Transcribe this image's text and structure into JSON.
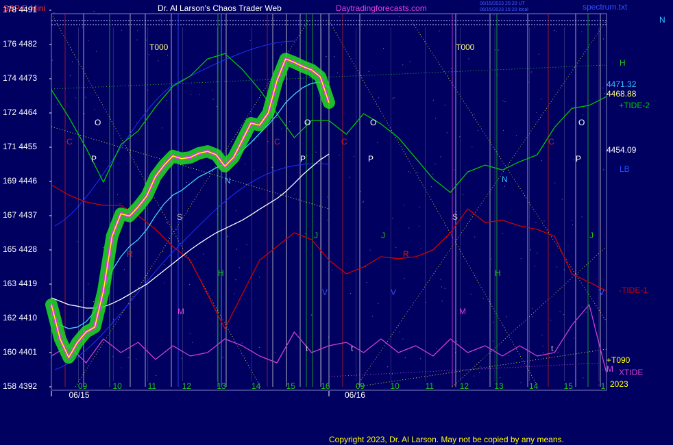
{
  "chart_data": {
    "type": "line",
    "title": "Dr. Al Larson's Chaos Trader Web",
    "instrument": "S&P E-Mini",
    "site": "Daytradingforecasts.com",
    "timestamps": [
      "06/15/2023 20:20 UT",
      "06/15/2023 15:20 local"
    ],
    "file_label": "spectrum.txt",
    "copyright": "Copyright 2023, Dr. Al Larson. May not be copied by any means.",
    "ylim": [
      4392,
      4491
    ],
    "yticks": [
      {
        "value": 4392,
        "label": "158 4392"
      },
      {
        "value": 4401,
        "label": "160 4401"
      },
      {
        "value": 4410,
        "label": "162 4410"
      },
      {
        "value": 4419,
        "label": "163 4419"
      },
      {
        "value": 4428,
        "label": "165 4428"
      },
      {
        "value": 4437,
        "label": "167 4437"
      },
      {
        "value": 4446,
        "label": "169 4446"
      },
      {
        "value": 4455,
        "label": "171 4455"
      },
      {
        "value": 4464,
        "label": "172 4464"
      },
      {
        "value": 4473,
        "label": "174 4473"
      },
      {
        "value": 4482,
        "label": "176 4482"
      },
      {
        "value": 4491,
        "label": "178 4491"
      }
    ],
    "xlim": [
      -0.9,
      15.1
    ],
    "xticks": [
      {
        "value": 0,
        "label": "09"
      },
      {
        "value": 1,
        "label": "10"
      },
      {
        "value": 2,
        "label": "11"
      },
      {
        "value": 3,
        "label": "12"
      },
      {
        "value": 4,
        "label": "13"
      },
      {
        "value": 5,
        "label": "14"
      },
      {
        "value": 6,
        "label": "15"
      },
      {
        "value": 7,
        "label": "16"
      },
      {
        "value": 8,
        "label": "09"
      },
      {
        "value": 9,
        "label": "10"
      },
      {
        "value": 10,
        "label": "11"
      },
      {
        "value": 11,
        "label": "12"
      },
      {
        "value": 12,
        "label": "13"
      },
      {
        "value": 13,
        "label": "14"
      },
      {
        "value": 14,
        "label": "15"
      },
      {
        "value": 15,
        "label": "1"
      }
    ],
    "day_starts": [
      -0.9,
      7.1
    ],
    "date_labels": [
      {
        "value": -0.1,
        "label": "06/15"
      },
      {
        "value": 7.85,
        "label": "06/16"
      }
    ],
    "series": [
      {
        "color": "#ffff00",
        "glow": "#22dd22",
        "x": [
          -0.9,
          -0.65,
          -0.4,
          -0.15,
          0.1,
          0.35,
          0.6,
          0.85,
          1.1,
          1.35,
          1.6,
          1.85,
          2.1,
          2.35,
          2.6,
          2.85,
          3.1,
          3.35,
          3.6,
          3.85,
          4.1,
          4.35,
          4.6,
          4.85,
          5.1,
          5.35,
          5.6,
          5.85,
          6.1,
          6.35,
          6.6,
          6.85,
          7.1
        ],
        "values": [
          4413.6,
          4404.6,
          4399.7,
          4403.7,
          4406.4,
          4407.7,
          4417.2,
          4431.6,
          4437.5,
          4436.9,
          4439.3,
          4442.2,
          4447.3,
          4450.3,
          4452.7,
          4452.0,
          4452.3,
          4453.4,
          4453.9,
          4453.0,
          4450.0,
          4452.3,
          4456.8,
          4461.3,
          4460.8,
          4464.0,
          4472.5,
          4478.2,
          4477.3,
          4476.2,
          4475.3,
          4473.5,
          4466.7
        ]
      },
      {
        "color": "#40d8ff",
        "x": [
          -0.9,
          -0.65,
          -0.4,
          -0.15,
          0.1,
          0.35,
          0.6,
          0.85,
          1.1,
          1.35,
          1.6,
          1.85,
          2.1,
          2.35,
          2.6,
          2.85,
          3.1,
          3.35,
          3.6,
          3.85,
          4.1,
          4.35,
          4.6,
          4.85,
          5.1,
          5.35,
          5.6,
          5.85,
          6.1,
          6.35,
          6.6,
          6.85,
          7.1
        ],
        "values": [
          4411.8,
          4408.2,
          4407.3,
          4407.7,
          4409.1,
          4411.8,
          4417.2,
          4422.6,
          4426.2,
          4428.9,
          4430.7,
          4433.4,
          4437.0,
          4440.1,
          4442.4,
          4443.6,
          4445.4,
          4447.2,
          4448.3,
          4449.6,
          4450.5,
          4451.9,
          4454.1,
          4456.2,
          4458.6,
          4460.9,
          4463.5,
          4466.7,
          4468.9,
          4470.7,
          4471.8,
          4472.1,
          4470.7
        ]
      },
      {
        "color": "#ffffff",
        "x": [
          -0.9,
          -0.65,
          -0.4,
          -0.15,
          0.1,
          0.35,
          0.6,
          0.85,
          1.1,
          1.35,
          1.6,
          1.85,
          2.1,
          2.35,
          2.6,
          2.85,
          3.1,
          3.35,
          3.6,
          3.85,
          4.1,
          4.35,
          4.6,
          4.85,
          5.1,
          5.35,
          5.6,
          5.85,
          6.1,
          6.35,
          6.6,
          6.85,
          7.1
        ],
        "values": [
          4415.4,
          4414.5,
          4413.6,
          4413.2,
          4412.7,
          4412.7,
          4413.0,
          4413.9,
          4415.0,
          4416.3,
          4417.7,
          4419.0,
          4420.8,
          4422.6,
          4424.4,
          4426.2,
          4428.0,
          4429.6,
          4431.1,
          4432.5,
          4433.6,
          4434.7,
          4435.8,
          4437.2,
          4438.7,
          4440.1,
          4441.5,
          4443.3,
          4445.5,
          4447.8,
          4449.8,
          4451.7,
          4453.2
        ]
      },
      {
        "name": "+TIDE-2",
        "color": "#00c800",
        "x": [
          -0.9,
          -0.4,
          0.1,
          0.6,
          1.1,
          1.6,
          2.1,
          2.6,
          3.1,
          3.6,
          4.1,
          4.6,
          5.1,
          5.6,
          6.1,
          6.6,
          7.1,
          7.6,
          8.1,
          8.6,
          9.1,
          9.6,
          10.1,
          10.6,
          11.1,
          11.6,
          12.1,
          12.6,
          13.1,
          13.6,
          14.1,
          14.6,
          15.1
        ],
        "values": [
          4470.1,
          4462.9,
          4454.8,
          4445.8,
          4455.7,
          4459.3,
          4465.6,
          4471.0,
          4473.7,
          4478.2,
          4479.6,
          4475.5,
          4470.1,
          4463.8,
          4457.5,
          4462.0,
          4462.0,
          4458.4,
          4463.8,
          4461.1,
          4457.5,
          4452.1,
          4446.7,
          4443.1,
          4448.5,
          4450.3,
          4449.0,
          4451.2,
          4453.0,
          4460.2,
          4465.2,
          4466.0,
          4468.3
        ]
      },
      {
        "name": "-TIDE-1",
        "color": "#d00000",
        "x": [
          -0.9,
          -0.4,
          0.1,
          0.6,
          1.1,
          1.6,
          2.1,
          2.6,
          3.1,
          3.6,
          4.1,
          4.6,
          5.1,
          5.6,
          6.1,
          6.6,
          7.1,
          7.6,
          8.1,
          8.6,
          9.1,
          9.6,
          10.1,
          10.6,
          11.1,
          11.6,
          12.1,
          12.6,
          13.1,
          13.6,
          14.1,
          14.6,
          15.1
        ],
        "values": [
          4445.1,
          4442.4,
          4440.6,
          4439.7,
          4439.7,
          4437.0,
          4433.4,
          4428.9,
          4425.3,
          4416.3,
          4407.3,
          4416.3,
          4425.3,
          4428.9,
          4432.5,
          4430.7,
          4425.3,
          4421.7,
          4423.5,
          4426.2,
          4425.7,
          4426.2,
          4428.0,
          4432.5,
          4438.8,
          4435.2,
          4435.8,
          4434.3,
          4433.4,
          4431.6,
          4421.7,
          4419.5,
          4417.2
        ]
      },
      {
        "name": "XTIDE",
        "color": "#d040d0",
        "x": [
          -0.9,
          -0.4,
          0.1,
          0.6,
          1.1,
          1.6,
          2.1,
          2.6,
          3.1,
          3.6,
          4.1,
          4.6,
          5.1,
          5.6,
          6.1,
          6.6,
          7.1,
          7.6,
          8.1,
          8.6,
          9.1,
          9.6,
          10.1,
          10.6,
          11.1,
          11.6,
          12.1,
          12.6,
          13.1,
          13.6,
          14.1,
          14.6,
          15.1
        ],
        "values": [
          4400.1,
          4402.8,
          4398.3,
          4404.6,
          4401.0,
          4403.7,
          4399.2,
          4402.8,
          4400.1,
          4401.0,
          4404.6,
          4402.8,
          4400.1,
          4398.3,
          4406.4,
          4401.0,
          4402.8,
          4403.7,
          4401.0,
          4404.6,
          4401.0,
          4402.8,
          4400.1,
          4404.6,
          4401.0,
          4402.8,
          4400.1,
          4402.8,
          4400.1,
          4401.0,
          4408.2,
          4413.6,
          4395.6
        ]
      }
    ],
    "right_labels": [
      "N",
      "H",
      "4471.32",
      "4468.88",
      "4454.09",
      "LB",
      "+T090",
      "M",
      "2023"
    ],
    "markers": [
      "T000",
      "T000",
      "C",
      "O",
      "P",
      "S",
      "R",
      "M",
      "H",
      "N",
      "V",
      "J",
      "t",
      "C",
      "O",
      "P",
      "C",
      "O",
      "P",
      "S",
      "R",
      "M",
      "H",
      "N",
      "V",
      "J",
      "t",
      "O",
      "P",
      "J",
      "t",
      "V",
      "C"
    ]
  }
}
